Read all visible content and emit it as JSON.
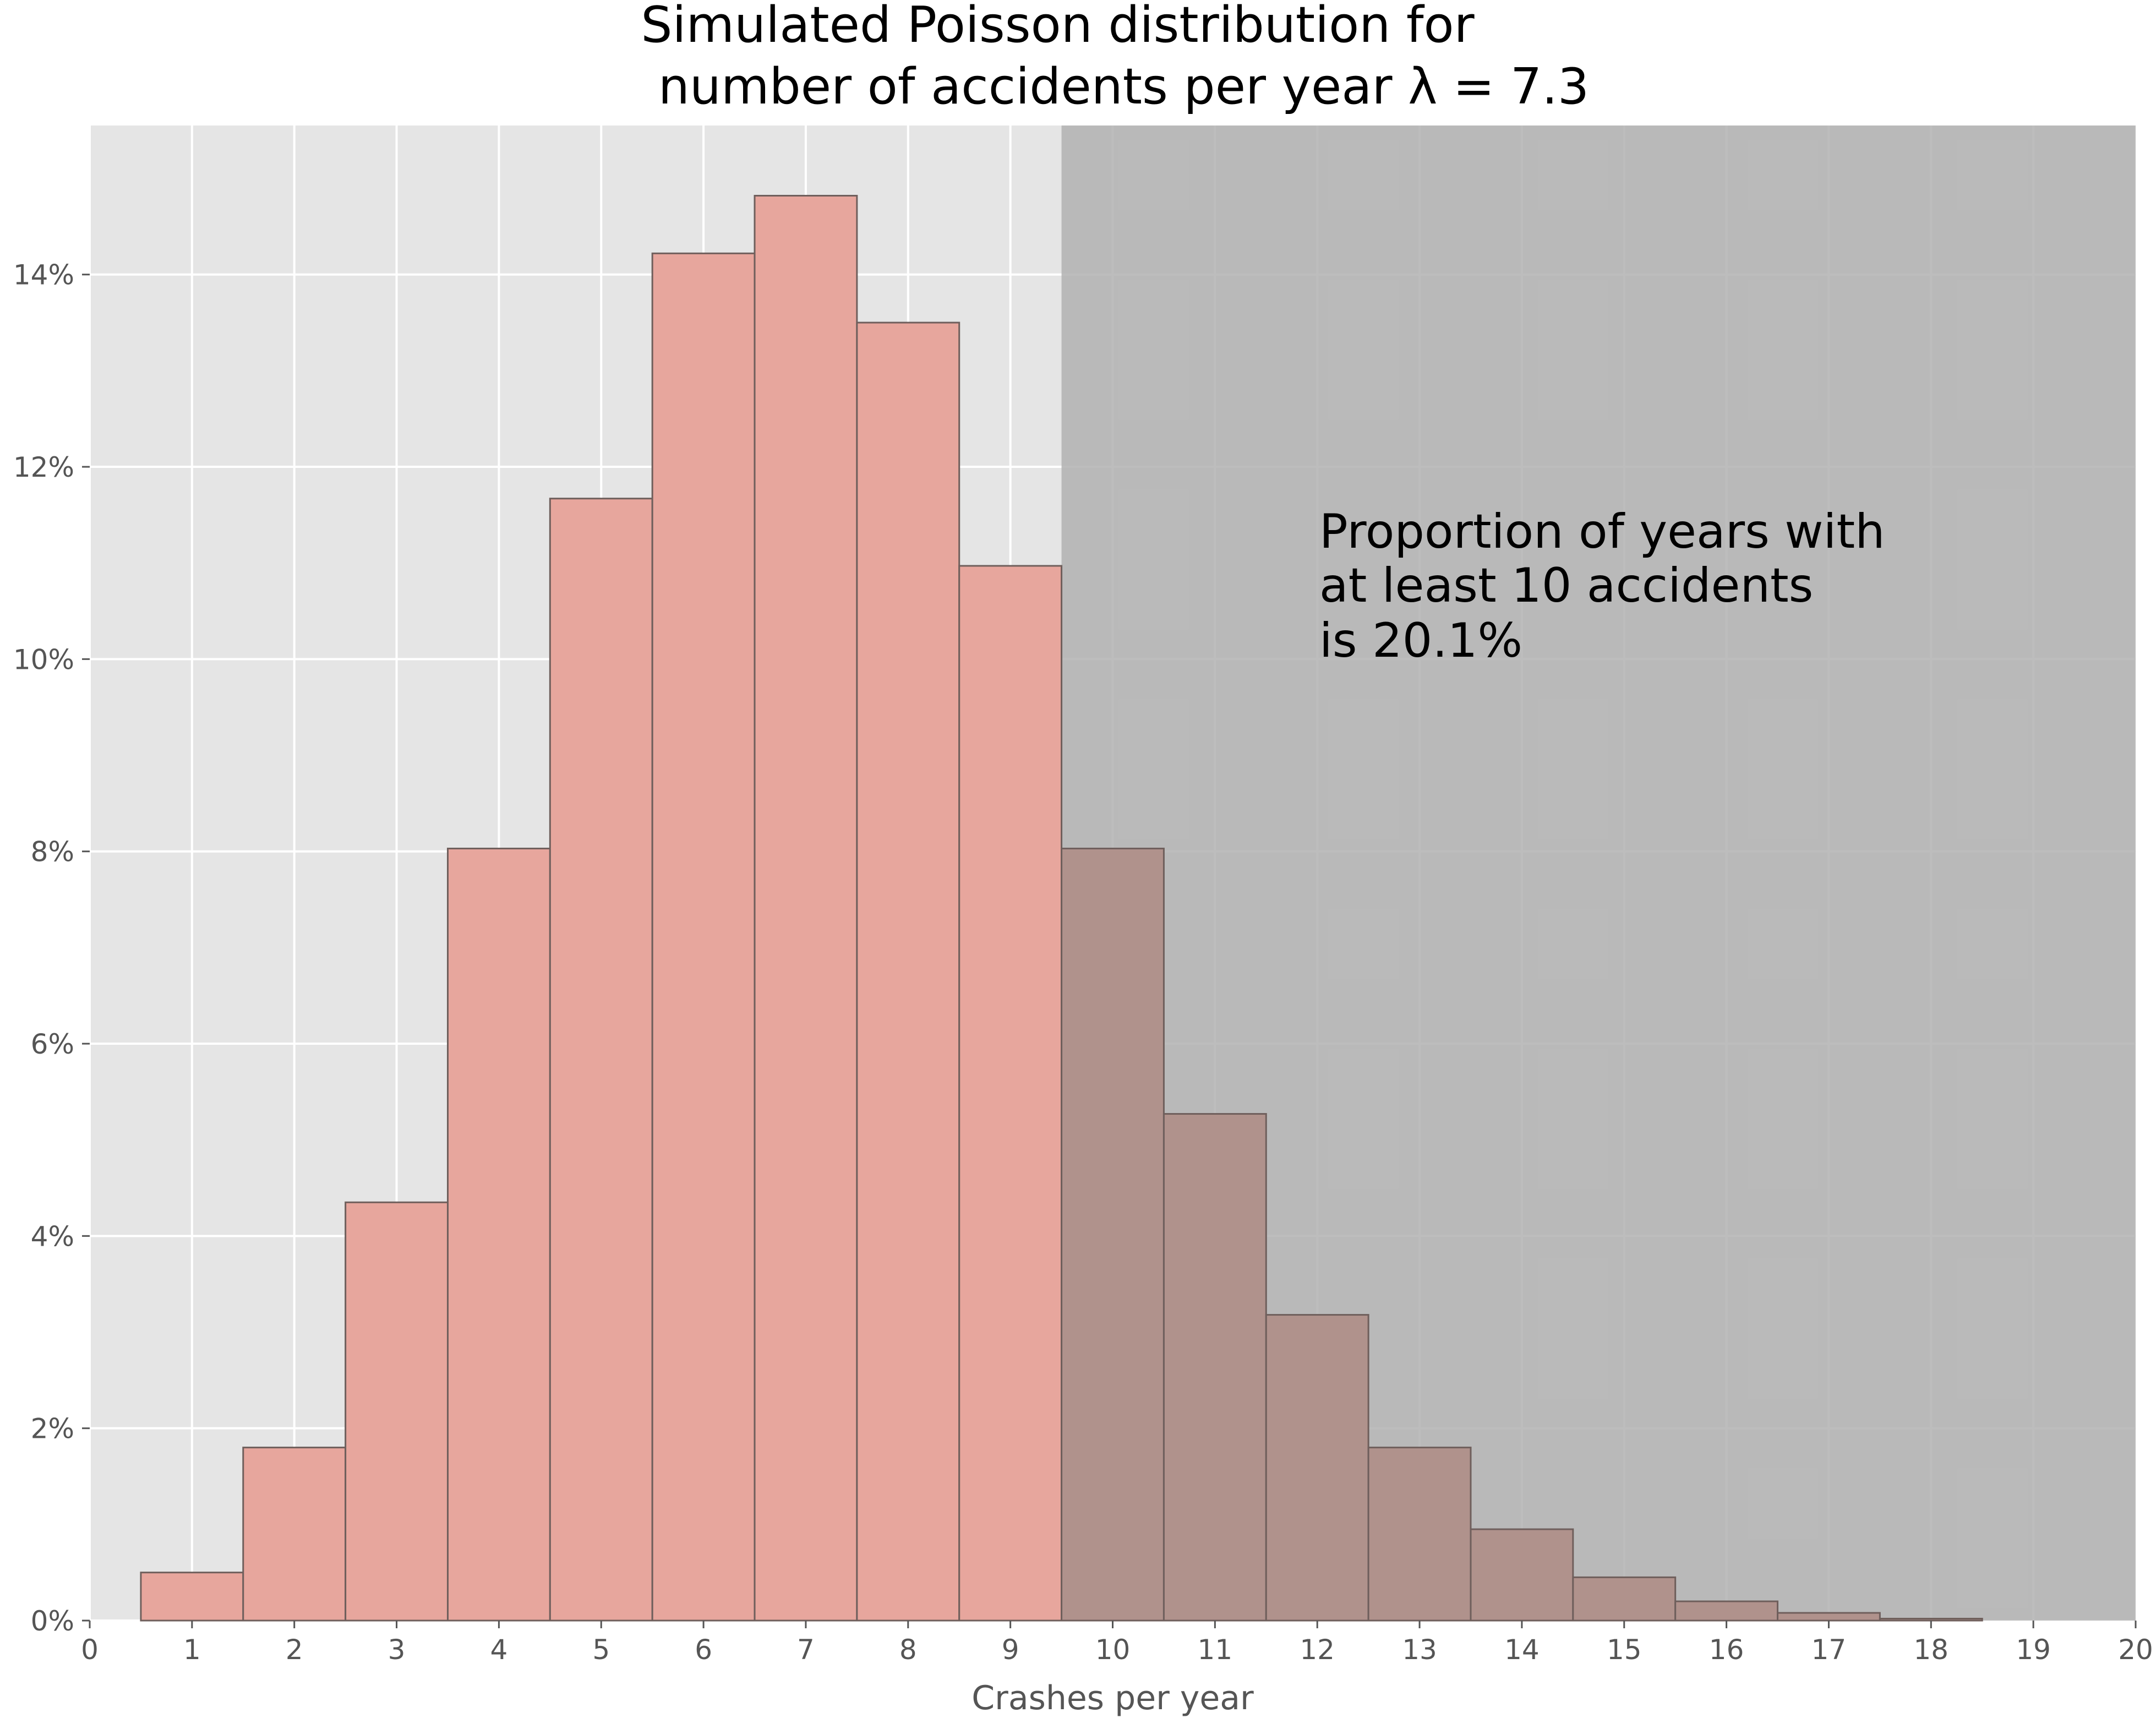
{
  "chart_data": {
    "type": "bar",
    "title_lines": [
      "Simulated Poisson distribution for",
      "number of accidents per year λ = 7.3"
    ],
    "xlabel": "Crashes per year",
    "ylabel": "",
    "x": [
      1,
      2,
      3,
      4,
      5,
      6,
      7,
      8,
      9,
      10,
      11,
      12,
      13,
      14,
      15,
      16,
      17,
      18
    ],
    "values": [
      0.5,
      1.8,
      4.35,
      8.03,
      11.67,
      14.22,
      14.82,
      13.5,
      10.97,
      8.03,
      5.27,
      3.18,
      1.8,
      0.95,
      0.45,
      0.2,
      0.08,
      0.02
    ],
    "value_unit": "percent",
    "xlim": [
      0,
      20
    ],
    "ylim": [
      0,
      15.55
    ],
    "x_ticks": [
      "0",
      "1",
      "2",
      "3",
      "4",
      "5",
      "6",
      "7",
      "8",
      "9",
      "10",
      "11",
      "12",
      "13",
      "14",
      "15",
      "16",
      "17",
      "18",
      "19",
      "20"
    ],
    "y_ticks": [
      "0%",
      "2%",
      "4%",
      "6%",
      "8%",
      "10%",
      "12%",
      "14%"
    ],
    "y_tick_values": [
      0,
      2,
      4,
      6,
      8,
      10,
      12,
      14
    ],
    "shaded_region": {
      "from_x": 9.5,
      "to_x": 20
    },
    "annotation_lines": [
      "Proportion of years with",
      "at least 10 accidents",
      "is 20.1%"
    ],
    "grid": true,
    "colors": {
      "plot_background": "#e5e5e5",
      "shaded_region": "#b2b2b2",
      "bar_fill": "#e7a69d",
      "bar_fill_shaded": "#b0928c",
      "bar_edge": "#6f5f5c",
      "grid": "#ffffff"
    }
  }
}
